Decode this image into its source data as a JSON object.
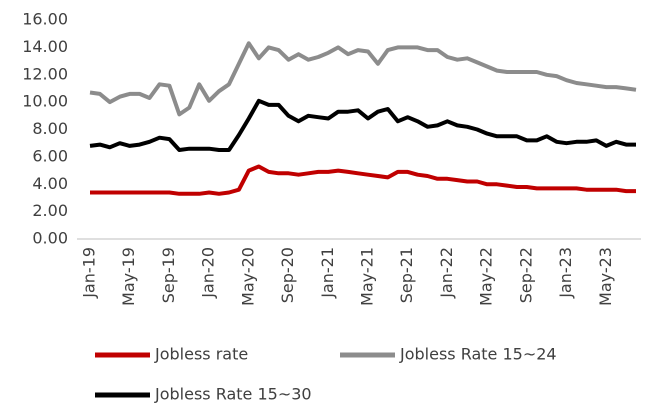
{
  "chart_data": {
    "type": "line",
    "categories": [
      "Jan-19",
      null,
      null,
      null,
      "May-19",
      null,
      null,
      null,
      "Sep-19",
      null,
      null,
      null,
      "Jan-20",
      null,
      null,
      null,
      "May-20",
      null,
      null,
      null,
      "Sep-20",
      null,
      null,
      null,
      "Jan-21",
      null,
      null,
      null,
      "May-21",
      null,
      null,
      null,
      "Sep-21",
      null,
      null,
      null,
      "Jan-22",
      null,
      null,
      null,
      "May-22",
      null,
      null,
      null,
      "Sep-22",
      null,
      null,
      null,
      "Jan-23",
      null,
      null,
      null,
      "May-23",
      null,
      null,
      null
    ],
    "series": [
      {
        "name": "Jobless rate",
        "color": "#c00000",
        "values": [
          3.4,
          3.4,
          3.4,
          3.4,
          3.4,
          3.4,
          3.4,
          3.4,
          3.4,
          3.3,
          3.3,
          3.3,
          3.4,
          3.3,
          3.4,
          3.6,
          5.0,
          5.3,
          4.9,
          4.8,
          4.8,
          4.7,
          4.8,
          4.9,
          4.9,
          5.0,
          4.9,
          4.8,
          4.7,
          4.6,
          4.5,
          4.9,
          4.9,
          4.7,
          4.6,
          4.4,
          4.4,
          4.3,
          4.2,
          4.2,
          4.0,
          4.0,
          3.9,
          3.8,
          3.8,
          3.7,
          3.7,
          3.7,
          3.7,
          3.7,
          3.6,
          3.6,
          3.6,
          3.6,
          3.5,
          3.5
        ]
      },
      {
        "name": "Jobless Rate 15~24",
        "color": "#8c8c8c",
        "values": [
          10.7,
          10.6,
          10.0,
          10.4,
          10.6,
          10.6,
          10.3,
          11.3,
          11.2,
          9.1,
          9.6,
          11.3,
          10.1,
          10.8,
          11.3,
          12.8,
          14.3,
          13.2,
          14.0,
          13.8,
          13.1,
          13.5,
          13.1,
          13.3,
          13.6,
          14.0,
          13.5,
          13.8,
          13.7,
          12.8,
          13.8,
          14.0,
          14.0,
          14.0,
          13.8,
          13.8,
          13.3,
          13.1,
          13.2,
          12.9,
          12.6,
          12.3,
          12.2,
          12.2,
          12.2,
          12.2,
          12.0,
          11.9,
          11.6,
          11.4,
          11.3,
          11.2,
          11.1,
          11.1,
          11.0,
          10.9
        ]
      },
      {
        "name": "Jobless Rate 15~30",
        "color": "#000000",
        "values": [
          6.8,
          6.9,
          6.7,
          7.0,
          6.8,
          6.9,
          7.1,
          7.4,
          7.3,
          6.5,
          6.6,
          6.6,
          6.6,
          6.5,
          6.5,
          7.6,
          8.8,
          10.1,
          9.8,
          9.8,
          9.0,
          8.6,
          9.0,
          8.9,
          8.8,
          9.3,
          9.3,
          9.4,
          8.8,
          9.3,
          9.5,
          8.6,
          8.9,
          8.6,
          8.2,
          8.3,
          8.6,
          8.3,
          8.2,
          8.0,
          7.7,
          7.5,
          7.5,
          7.5,
          7.2,
          7.2,
          7.5,
          7.1,
          7.0,
          7.1,
          7.1,
          7.2,
          6.8,
          7.1,
          6.9,
          6.9
        ]
      }
    ],
    "ylim": [
      0,
      16
    ],
    "yticks": [
      {
        "value": 0,
        "label": "0.00"
      },
      {
        "value": 2,
        "label": "2.00"
      },
      {
        "value": 4,
        "label": "4.00"
      },
      {
        "value": 6,
        "label": "6.00"
      },
      {
        "value": 8,
        "label": "8.00"
      },
      {
        "value": 10,
        "label": "10.00"
      },
      {
        "value": 12,
        "label": "12.00"
      },
      {
        "value": 14,
        "label": "14.00"
      },
      {
        "value": 16,
        "label": "16.00"
      }
    ],
    "grid": false,
    "legend": "bottom"
  }
}
